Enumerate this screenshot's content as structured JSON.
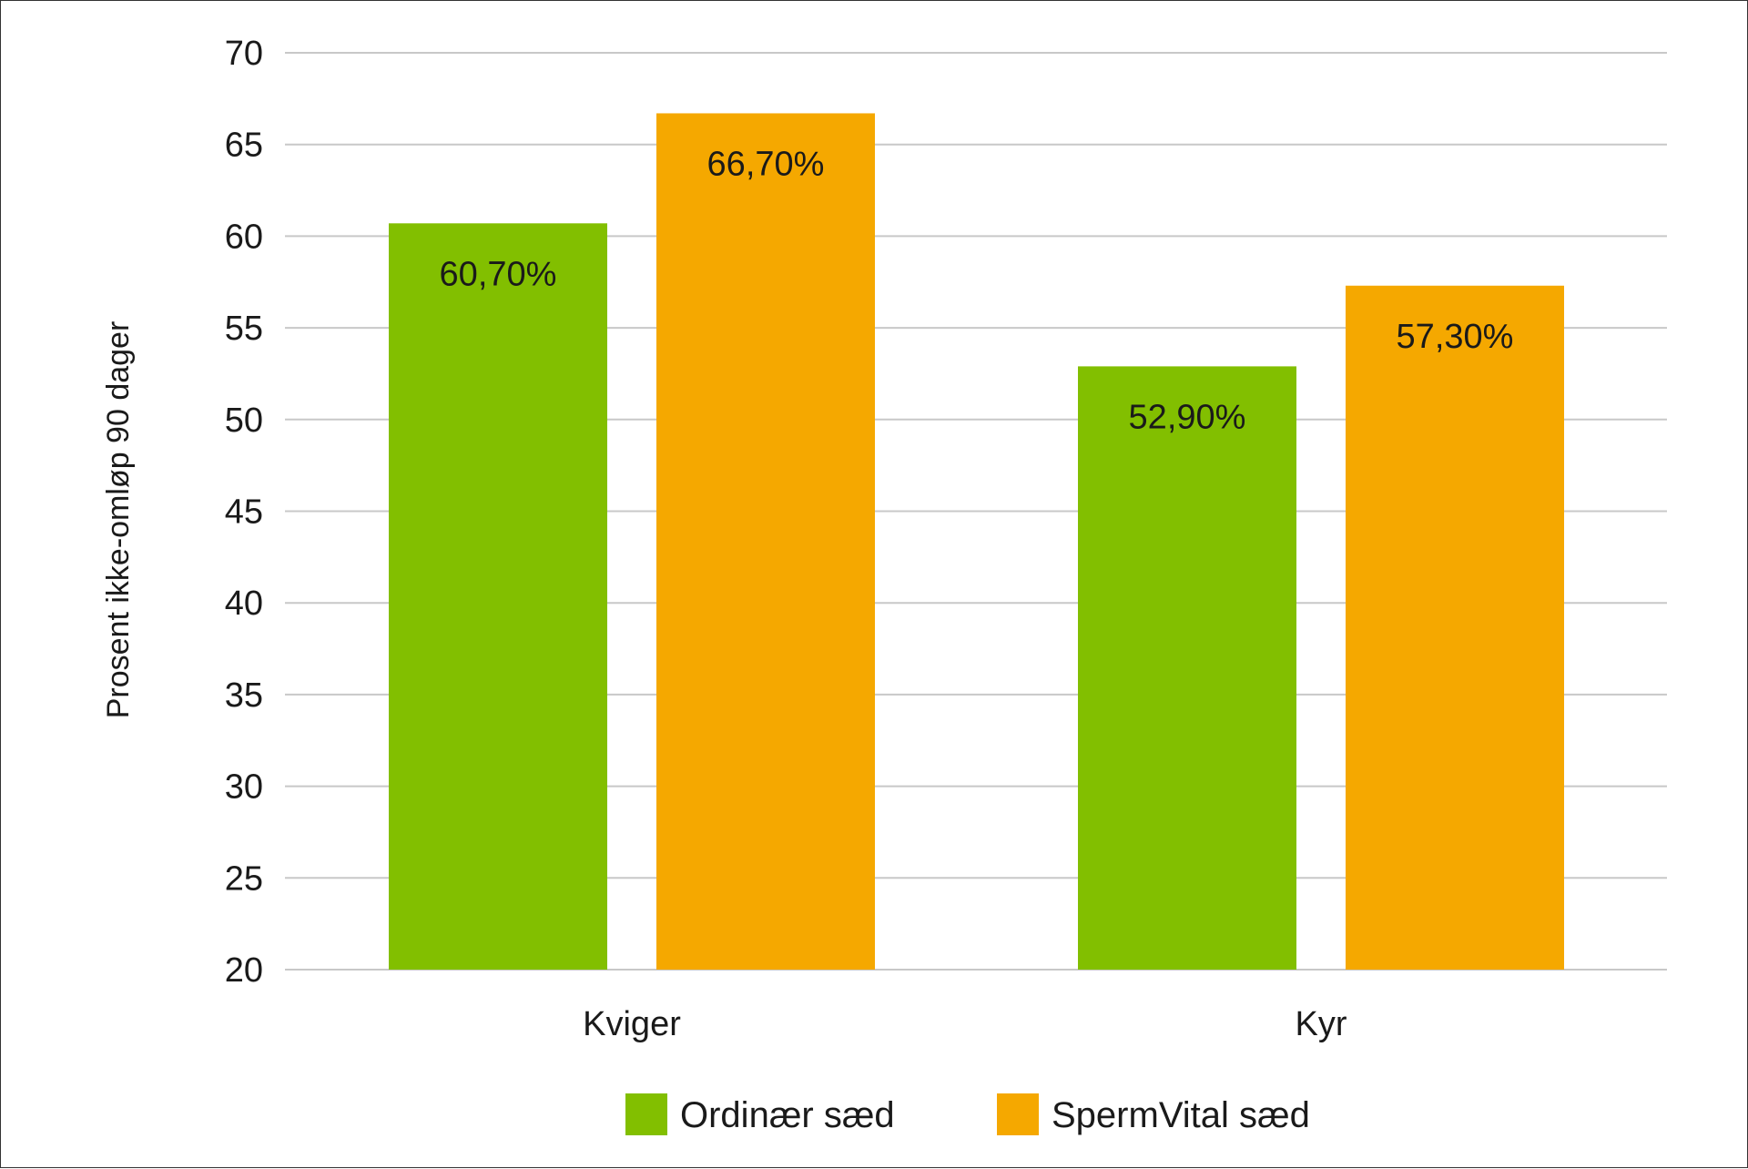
{
  "chart_data": {
    "type": "bar",
    "categories": [
      "Kviger",
      "Kyr"
    ],
    "series": [
      {
        "name": "Ordinær sæd",
        "values": [
          60.7,
          52.9
        ],
        "labels": [
          "60,70%",
          "52,90%"
        ],
        "color": "#82BF00"
      },
      {
        "name": "SpermVital sæd",
        "values": [
          66.7,
          57.3
        ],
        "labels": [
          "66,70%",
          "57,30%"
        ],
        "color": "#F5A800"
      }
    ],
    "ylabel": "Prosent ikke-omløp 90 dager",
    "ylim": [
      20,
      70
    ],
    "yticks": [
      20,
      25,
      30,
      35,
      40,
      45,
      50,
      55,
      60,
      65,
      70
    ],
    "grid": true,
    "grid_color": "#c8c8c8",
    "legend_position": "bottom-center"
  }
}
